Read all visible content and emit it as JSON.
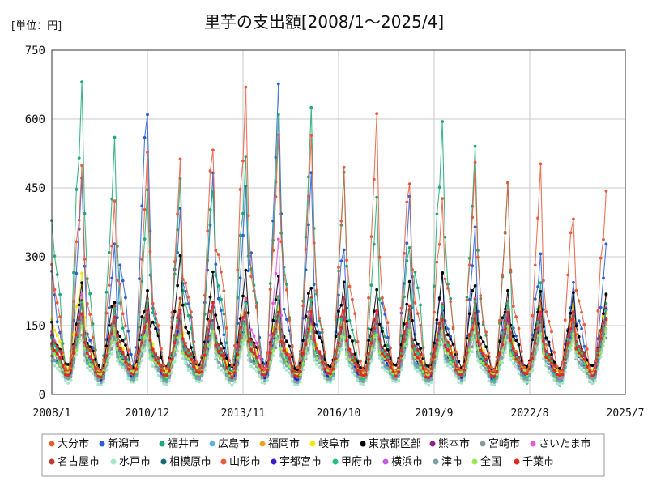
{
  "chart_data": {
    "type": "line",
    "title": "里芋の支出額[2008/1～2025/4]",
    "unit_label": "[単位：円]",
    "ylim": [
      0,
      750
    ],
    "y_ticks": [
      0,
      150,
      300,
      450,
      600,
      750
    ],
    "x_ticks": [
      "2008/1",
      "2010/12",
      "2013/11",
      "2016/10",
      "2019/9",
      "2022/8",
      "2025/7"
    ],
    "x_range": [
      "2008-01",
      "2025-07"
    ],
    "grid": true,
    "legend_position": "bottom",
    "series": [
      {
        "name": "大分市",
        "color": "#e8602c",
        "peaks": [
          175,
          150,
          165,
          175,
          185,
          195,
          180,
          190,
          170,
          165,
          175,
          160,
          170,
          165,
          175,
          185,
          200
        ],
        "lows": [
          40,
          35,
          40,
          35,
          45,
          40,
          35,
          40,
          45,
          40,
          40,
          35,
          40,
          45,
          40,
          40,
          45
        ]
      },
      {
        "name": "新潟市",
        "color": "#2a5fd6",
        "peaks": [
          460,
          310,
          670,
          430,
          495,
          450,
          650,
          450,
          340,
          160,
          435,
          260,
          345,
          220,
          325,
          250,
          325
        ],
        "lows": [
          20,
          25,
          30,
          20,
          25,
          20,
          25,
          20,
          25,
          20,
          20,
          25,
          20,
          20,
          20,
          25,
          30
        ]
      },
      {
        "name": "福井市",
        "color": "#1daa73",
        "peaks": [
          710,
          565,
          435,
          445,
          485,
          550,
          625,
          620,
          465,
          400,
          345,
          620,
          545,
          450,
          230,
          200,
          210
        ],
        "lows": [
          10,
          15,
          10,
          15,
          10,
          20,
          15,
          10,
          15,
          10,
          10,
          15,
          10,
          15,
          10,
          10,
          15
        ]
      },
      {
        "name": "広島市",
        "color": "#5ab4dc",
        "peaks": [
          150,
          130,
          125,
          140,
          135,
          145,
          140,
          130,
          135,
          125,
          130,
          125,
          135,
          130,
          140,
          130,
          135
        ],
        "lows": [
          30,
          25,
          30,
          25,
          30,
          25,
          30,
          25,
          30,
          25,
          30,
          25,
          30,
          25,
          30,
          25,
          30
        ]
      },
      {
        "name": "福岡市",
        "color": "#f0a020",
        "peaks": [
          160,
          140,
          150,
          145,
          155,
          150,
          160,
          150,
          145,
          140,
          150,
          145,
          155,
          150,
          145,
          150,
          155
        ],
        "lows": [
          40,
          35,
          40,
          35,
          40,
          35,
          40,
          35,
          40,
          35,
          40,
          35,
          40,
          35,
          40,
          35,
          40
        ]
      },
      {
        "name": "岐阜市",
        "color": "#f2e600",
        "peaks": [
          280,
          200,
          180,
          190,
          185,
          195,
          200,
          190,
          180,
          170,
          180,
          185,
          190,
          180,
          185,
          180,
          190
        ],
        "lows": [
          45,
          40,
          45,
          40,
          45,
          40,
          45,
          40,
          45,
          40,
          45,
          40,
          45,
          40,
          45,
          40,
          45
        ]
      },
      {
        "name": "東京都区部",
        "color": "#000000",
        "peaks": [
          230,
          220,
          240,
          310,
          265,
          260,
          240,
          250,
          255,
          230,
          240,
          250,
          260,
          240,
          230,
          220,
          210
        ],
        "lows": [
          50,
          45,
          50,
          45,
          50,
          45,
          50,
          45,
          50,
          45,
          50,
          45,
          50,
          45,
          50,
          45,
          50
        ]
      },
      {
        "name": "熊本市",
        "color": "#8e1f8e",
        "peaks": [
          200,
          180,
          190,
          195,
          200,
          205,
          210,
          200,
          195,
          185,
          190,
          185,
          195,
          190,
          185,
          180,
          190
        ],
        "lows": [
          35,
          30,
          35,
          30,
          35,
          30,
          35,
          30,
          35,
          30,
          35,
          30,
          35,
          30,
          35,
          30,
          35
        ]
      },
      {
        "name": "宮崎市",
        "color": "#8a959c",
        "peaks": [
          140,
          130,
          135,
          140,
          135,
          140,
          135,
          130,
          135,
          130,
          135,
          130,
          135,
          130,
          135,
          130,
          135
        ],
        "lows": [
          30,
          25,
          30,
          25,
          30,
          25,
          30,
          25,
          30,
          25,
          30,
          25,
          30,
          25,
          30,
          25,
          30
        ]
      },
      {
        "name": "さいたま市",
        "color": "#e05ae0",
        "peaks": [
          210,
          180,
          190,
          185,
          195,
          200,
          320,
          210,
          190,
          180,
          185,
          190,
          195,
          185,
          180,
          175,
          185
        ],
        "lows": [
          35,
          30,
          35,
          30,
          35,
          30,
          35,
          30,
          35,
          30,
          35,
          30,
          35,
          30,
          35,
          30,
          35
        ]
      },
      {
        "name": "名古屋市",
        "color": "#c0392b",
        "peaks": [
          210,
          190,
          200,
          195,
          205,
          210,
          215,
          205,
          200,
          190,
          195,
          200,
          205,
          195,
          190,
          185,
          195
        ],
        "lows": [
          40,
          35,
          40,
          35,
          40,
          35,
          40,
          35,
          40,
          35,
          40,
          35,
          40,
          35,
          40,
          35,
          40
        ]
      },
      {
        "name": "水戸市",
        "color": "#a8e6c8",
        "peaks": [
          130,
          120,
          125,
          120,
          125,
          130,
          125,
          120,
          125,
          120,
          125,
          120,
          125,
          120,
          125,
          120,
          125
        ],
        "lows": [
          20,
          15,
          20,
          15,
          20,
          15,
          20,
          15,
          20,
          15,
          20,
          15,
          20,
          15,
          20,
          15,
          20
        ]
      },
      {
        "name": "相模原市",
        "color": "#16697a",
        "peaks": [
          170,
          160,
          165,
          170,
          165,
          170,
          165,
          160,
          165,
          160,
          165,
          160,
          165,
          160,
          165,
          160,
          165
        ],
        "lows": [
          30,
          25,
          30,
          25,
          30,
          25,
          30,
          25,
          30,
          25,
          30,
          25,
          30,
          25,
          30,
          25,
          30
        ]
      },
      {
        "name": "山形市",
        "color": "#e65c3c",
        "peaks": [
          520,
          425,
          515,
          485,
          585,
          710,
          580,
          560,
          475,
          570,
          495,
          445,
          510,
          450,
          475,
          420,
          470
        ],
        "lows": [
          20,
          25,
          20,
          25,
          20,
          25,
          20,
          25,
          20,
          25,
          20,
          25,
          20,
          25,
          20,
          25,
          20
        ]
      },
      {
        "name": "宇都宮市",
        "color": "#3a1ccc",
        "peaks": [
          190,
          170,
          180,
          175,
          185,
          190,
          185,
          180,
          175,
          170,
          175,
          170,
          180,
          175,
          170,
          165,
          175
        ],
        "lows": [
          30,
          25,
          30,
          25,
          30,
          25,
          30,
          25,
          30,
          25,
          30,
          25,
          30,
          25,
          30,
          25,
          30
        ]
      },
      {
        "name": "甲府市",
        "color": "#22c27a",
        "peaks": [
          200,
          180,
          190,
          185,
          195,
          200,
          205,
          195,
          190,
          180,
          185,
          190,
          195,
          185,
          180,
          175,
          185
        ],
        "lows": [
          30,
          25,
          30,
          25,
          30,
          25,
          30,
          25,
          30,
          25,
          30,
          25,
          30,
          25,
          30,
          25,
          30
        ]
      },
      {
        "name": "横浜市",
        "color": "#c45ee0",
        "peaks": [
          185,
          170,
          180,
          175,
          185,
          190,
          185,
          180,
          175,
          170,
          175,
          170,
          180,
          175,
          170,
          165,
          175
        ],
        "lows": [
          35,
          30,
          35,
          30,
          35,
          30,
          35,
          30,
          35,
          30,
          35,
          30,
          35,
          30,
          35,
          30,
          35
        ]
      },
      {
        "name": "津市",
        "color": "#7aa0a8",
        "peaks": [
          160,
          150,
          155,
          150,
          155,
          160,
          155,
          150,
          155,
          150,
          155,
          150,
          155,
          150,
          155,
          150,
          155
        ],
        "lows": [
          25,
          20,
          25,
          20,
          25,
          20,
          25,
          20,
          25,
          20,
          25,
          20,
          25,
          20,
          25,
          20,
          25
        ]
      },
      {
        "name": "全国",
        "color": "#9ae65a",
        "peaks": [
          150,
          140,
          145,
          140,
          145,
          150,
          145,
          140,
          145,
          140,
          145,
          140,
          145,
          140,
          145,
          140,
          145
        ],
        "lows": [
          40,
          35,
          40,
          35,
          40,
          35,
          40,
          35,
          40,
          35,
          40,
          35,
          40,
          35,
          40,
          35,
          40
        ]
      },
      {
        "name": "千葉市",
        "color": "#e02a1a",
        "peaks": [
          190,
          175,
          185,
          180,
          190,
          195,
          190,
          185,
          180,
          175,
          180,
          175,
          185,
          180,
          175,
          170,
          180
        ],
        "lows": [
          35,
          30,
          35,
          30,
          35,
          30,
          35,
          30,
          35,
          30,
          35,
          30,
          35,
          30,
          35,
          30,
          35
        ]
      }
    ]
  }
}
